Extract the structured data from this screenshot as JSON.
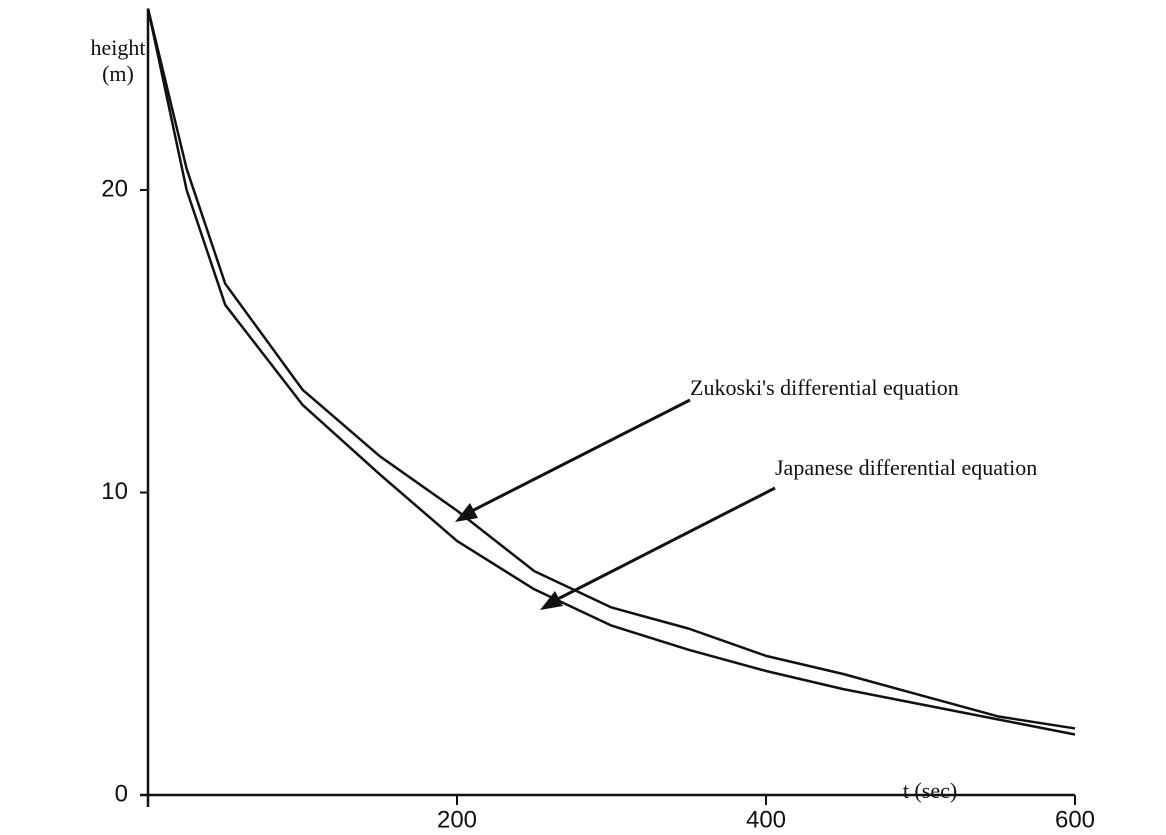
{
  "chart_data": {
    "type": "line",
    "ylabel": [
      "height",
      "(m)"
    ],
    "xlabel": "t (sec)",
    "x": [
      0,
      25,
      50,
      100,
      150,
      200,
      250,
      300,
      350,
      400,
      450,
      500,
      550,
      600
    ],
    "series": [
      {
        "name": "Zukoski's differential equation",
        "color": "#111111",
        "values": [
          26,
          20.7,
          16.9,
          13.4,
          11.2,
          9.4,
          7.4,
          6.2,
          5.5,
          4.6,
          4.0,
          3.3,
          2.6,
          2.2
        ]
      },
      {
        "name": "Japanese differential equation",
        "color": "#111111",
        "values": [
          26,
          20.0,
          16.2,
          12.9,
          10.6,
          8.4,
          6.8,
          5.6,
          4.8,
          4.1,
          3.5,
          3.0,
          2.5,
          2.0
        ]
      }
    ],
    "xlim": [
      0,
      600
    ],
    "xticks": [
      200,
      400,
      600
    ],
    "ylim": [
      0,
      26
    ],
    "yticks": [
      0,
      10,
      20
    ]
  }
}
